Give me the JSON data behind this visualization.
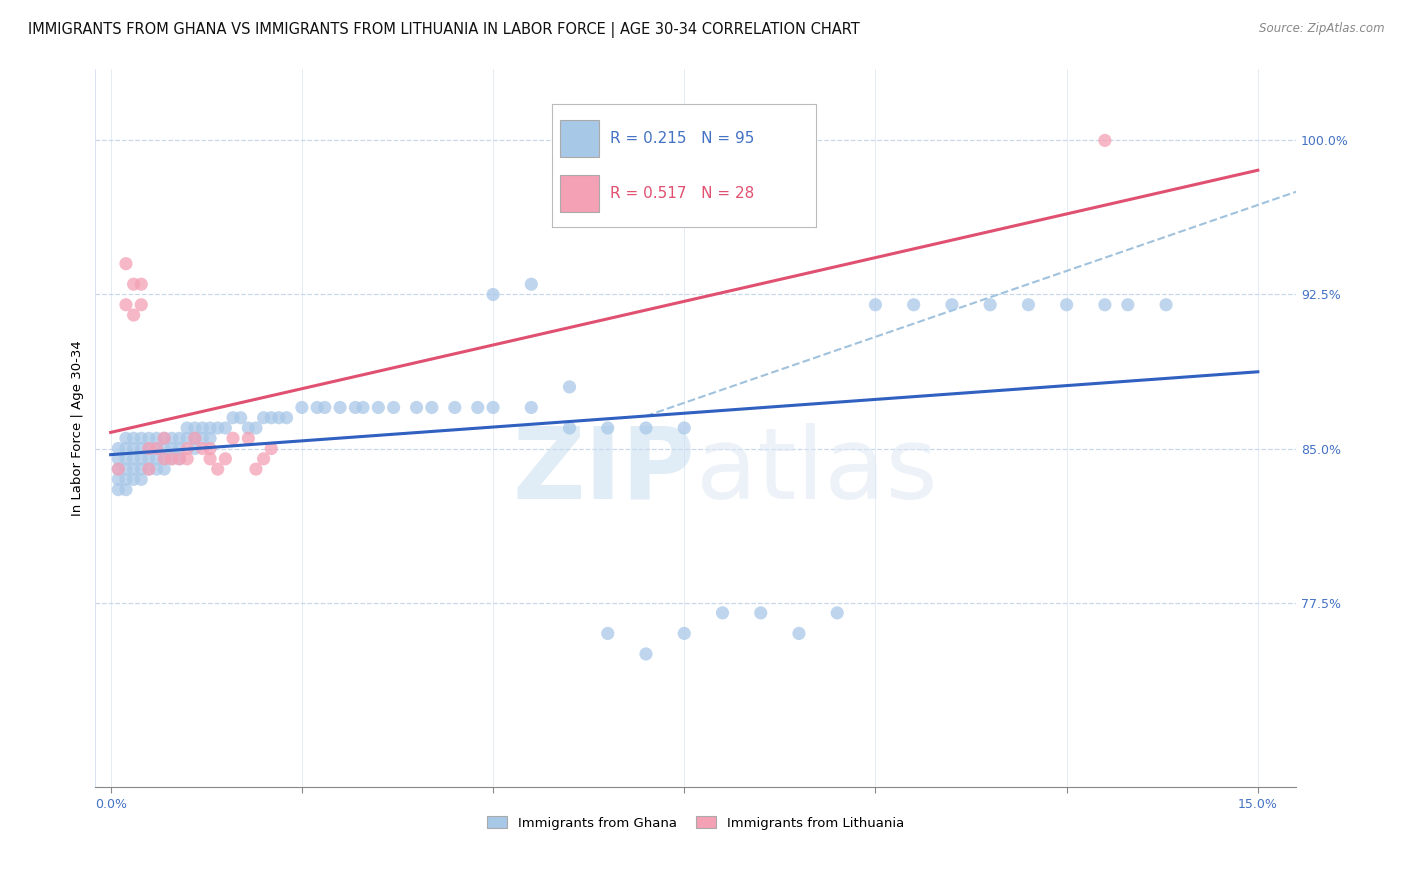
{
  "title": "IMMIGRANTS FROM GHANA VS IMMIGRANTS FROM LITHUANIA IN LABOR FORCE | AGE 30-34 CORRELATION CHART",
  "source": "Source: ZipAtlas.com",
  "ylabel": "In Labor Force | Age 30-34",
  "xlim": [
    -0.002,
    0.155
  ],
  "ylim": [
    0.685,
    1.035
  ],
  "xticks": [
    0.0,
    0.025,
    0.05,
    0.075,
    0.1,
    0.125,
    0.15
  ],
  "xticklabels": [
    "0.0%",
    "",
    "",
    "",
    "",
    "",
    "15.0%"
  ],
  "yticks": [
    0.775,
    0.85,
    0.925,
    1.0
  ],
  "yticklabels": [
    "77.5%",
    "85.0%",
    "92.5%",
    "100.0%"
  ],
  "ghana_color": "#a8c8e8",
  "lithuania_color": "#f4a0b5",
  "ghana_trend_color": "#3060c0",
  "lithuania_trend_color": "#e05070",
  "dashed_line_color": "#90b8d8",
  "legend_ghana_R": 0.215,
  "legend_ghana_N": 95,
  "legend_lithuania_R": 0.517,
  "legend_lithuania_N": 28,
  "ghana_x": [
    0.001,
    0.001,
    0.001,
    0.001,
    0.001,
    0.002,
    0.002,
    0.002,
    0.002,
    0.002,
    0.002,
    0.003,
    0.003,
    0.003,
    0.003,
    0.003,
    0.004,
    0.004,
    0.004,
    0.004,
    0.004,
    0.005,
    0.005,
    0.005,
    0.005,
    0.006,
    0.006,
    0.006,
    0.006,
    0.007,
    0.007,
    0.007,
    0.007,
    0.008,
    0.008,
    0.008,
    0.009,
    0.009,
    0.009,
    0.01,
    0.01,
    0.011,
    0.011,
    0.011,
    0.012,
    0.012,
    0.013,
    0.013,
    0.014,
    0.015,
    0.016,
    0.017,
    0.018,
    0.019,
    0.02,
    0.021,
    0.022,
    0.023,
    0.025,
    0.027,
    0.028,
    0.03,
    0.032,
    0.033,
    0.035,
    0.037,
    0.04,
    0.042,
    0.045,
    0.048,
    0.05,
    0.055,
    0.06,
    0.065,
    0.07,
    0.075,
    0.08,
    0.085,
    0.09,
    0.095,
    0.1,
    0.105,
    0.11,
    0.115,
    0.12,
    0.125,
    0.13,
    0.133,
    0.138,
    0.05,
    0.055,
    0.06,
    0.065,
    0.07,
    0.075
  ],
  "ghana_y": [
    0.85,
    0.845,
    0.84,
    0.835,
    0.83,
    0.855,
    0.85,
    0.845,
    0.84,
    0.835,
    0.83,
    0.855,
    0.85,
    0.845,
    0.84,
    0.835,
    0.855,
    0.85,
    0.845,
    0.84,
    0.835,
    0.855,
    0.85,
    0.845,
    0.84,
    0.855,
    0.85,
    0.845,
    0.84,
    0.855,
    0.85,
    0.845,
    0.84,
    0.855,
    0.85,
    0.845,
    0.855,
    0.85,
    0.845,
    0.86,
    0.855,
    0.86,
    0.855,
    0.85,
    0.86,
    0.855,
    0.86,
    0.855,
    0.86,
    0.86,
    0.865,
    0.865,
    0.86,
    0.86,
    0.865,
    0.865,
    0.865,
    0.865,
    0.87,
    0.87,
    0.87,
    0.87,
    0.87,
    0.87,
    0.87,
    0.87,
    0.87,
    0.87,
    0.87,
    0.87,
    0.925,
    0.93,
    0.88,
    0.76,
    0.75,
    0.76,
    0.77,
    0.77,
    0.76,
    0.77,
    0.92,
    0.92,
    0.92,
    0.92,
    0.92,
    0.92,
    0.92,
    0.92,
    0.92,
    0.87,
    0.87,
    0.86,
    0.86,
    0.86,
    0.86
  ],
  "lithuania_x": [
    0.001,
    0.002,
    0.002,
    0.003,
    0.003,
    0.004,
    0.004,
    0.005,
    0.005,
    0.006,
    0.007,
    0.007,
    0.008,
    0.009,
    0.01,
    0.01,
    0.011,
    0.012,
    0.013,
    0.013,
    0.014,
    0.015,
    0.016,
    0.018,
    0.019,
    0.02,
    0.021,
    0.13
  ],
  "lithuania_y": [
    0.84,
    0.94,
    0.92,
    0.93,
    0.915,
    0.93,
    0.92,
    0.85,
    0.84,
    0.85,
    0.855,
    0.845,
    0.845,
    0.845,
    0.85,
    0.845,
    0.855,
    0.85,
    0.85,
    0.845,
    0.84,
    0.845,
    0.855,
    0.855,
    0.84,
    0.845,
    0.85,
    1.0
  ],
  "watermark_zip": "ZIP",
  "watermark_atlas": "atlas",
  "axis_color": "#4472c4",
  "grid_color": "#c8d8ec",
  "title_color": "#111111",
  "title_fontsize": 10.5,
  "ylabel_fontsize": 9.5,
  "tick_label_fontsize": 9
}
